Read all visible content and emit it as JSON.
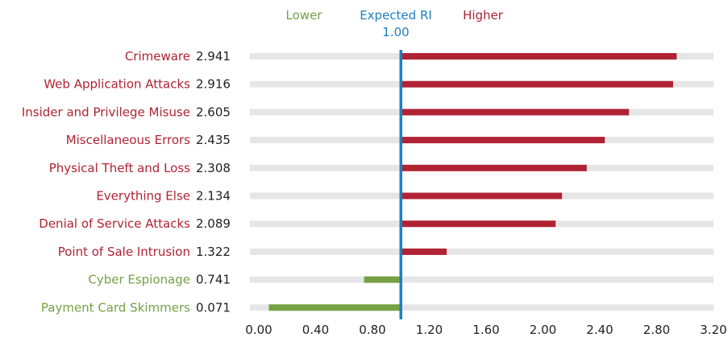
{
  "chart_data": {
    "type": "bar",
    "orientation": "horizontal",
    "categories": [
      "Crimeware",
      "Web Application Attacks",
      "Insider and Privilege Misuse",
      "Miscellaneous Errors",
      "Physical Theft and Loss",
      "Everything Else",
      "Denial of Service Attacks",
      "Point of Sale Intrusion",
      "Cyber Espionage",
      "Payment Card Skimmers"
    ],
    "values": [
      2.941,
      2.916,
      2.605,
      2.435,
      2.308,
      2.134,
      2.089,
      1.322,
      0.741,
      0.071
    ],
    "value_labels": [
      "2.941",
      "2.916",
      "2.605",
      "2.435",
      "2.308",
      "2.134",
      "2.089",
      "1.322",
      "0.741",
      "0.071"
    ],
    "baseline": 1.0,
    "xlim": [
      0,
      3.2
    ],
    "xticks": [
      "0.00",
      "0.40",
      "0.80",
      "1.20",
      "1.60",
      "2.00",
      "2.40",
      "2.80",
      "3.20"
    ],
    "legend": {
      "lower_label": "Lower",
      "expected_label": "Expected RI",
      "expected_value_label": "1.00",
      "higher_label": "Higher",
      "placement": "top-center"
    },
    "colors": {
      "lower": "#76a044",
      "higher": "#b02333",
      "baseline": "#1f7fc0",
      "track": "#e6e6e6",
      "axis_text": "#222222"
    },
    "grid": false
  }
}
